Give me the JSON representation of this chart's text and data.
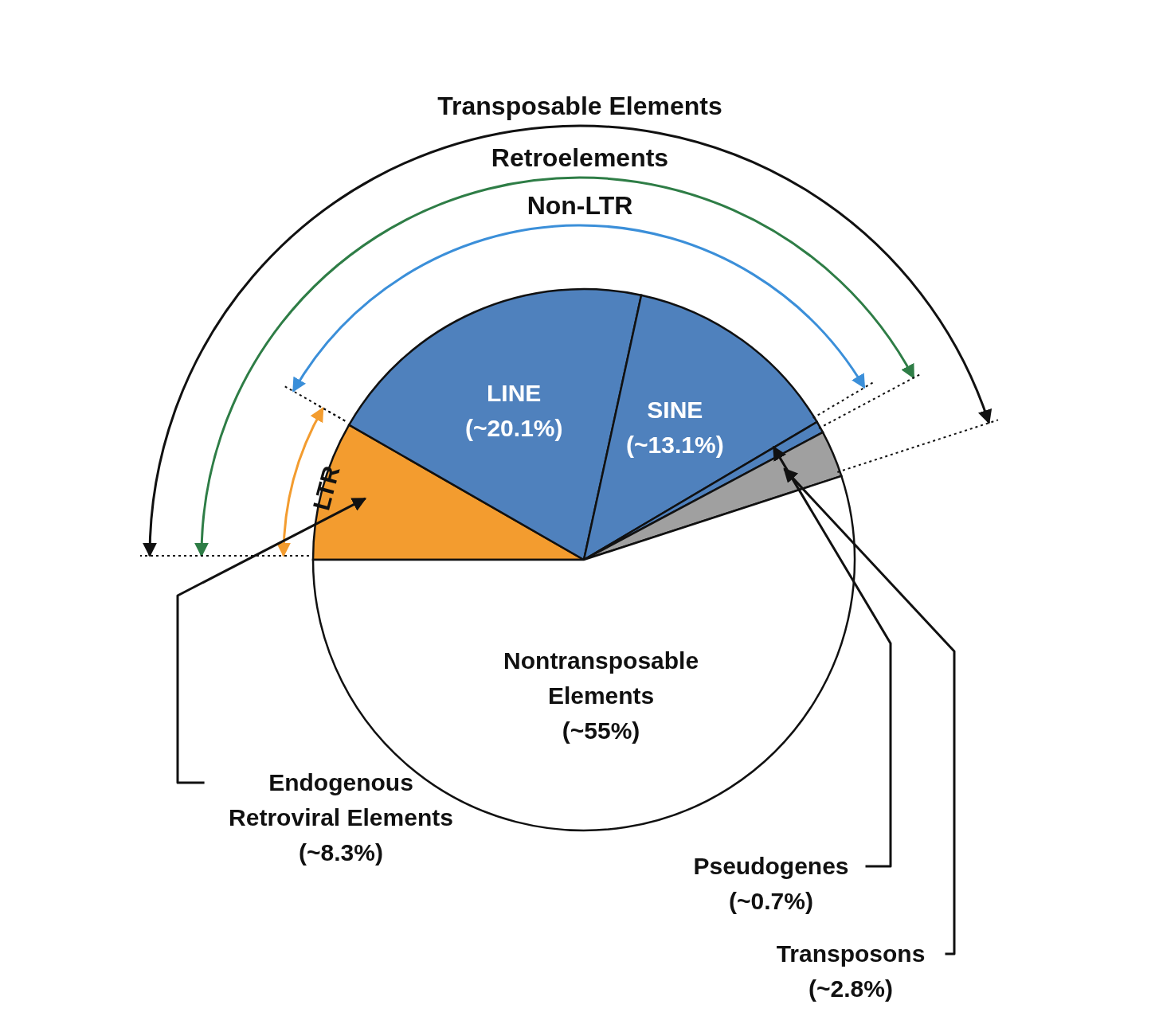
{
  "chart_data": {
    "type": "pie",
    "categories": [
      "Endogenous Retroviral Elements",
      "LINE",
      "SINE",
      "Pseudogenes",
      "Transposons",
      "Nontransposable Elements"
    ],
    "values": [
      8.3,
      20.1,
      13.1,
      0.7,
      2.8,
      55
    ],
    "value_labels": [
      "(~8.3%)",
      "(~20.1%)",
      "(~13.1%)",
      "(~0.7%)",
      "(~2.8%)",
      "(~55%)"
    ],
    "colors": [
      "#f39c2f",
      "#4f81bd",
      "#4f81bd",
      "#4f81bd",
      "#a0a0a0",
      "#ffffff"
    ],
    "annotations": [
      "Transposable Elements",
      "Retroelements",
      "Non-LTR",
      "LTR"
    ]
  }
}
